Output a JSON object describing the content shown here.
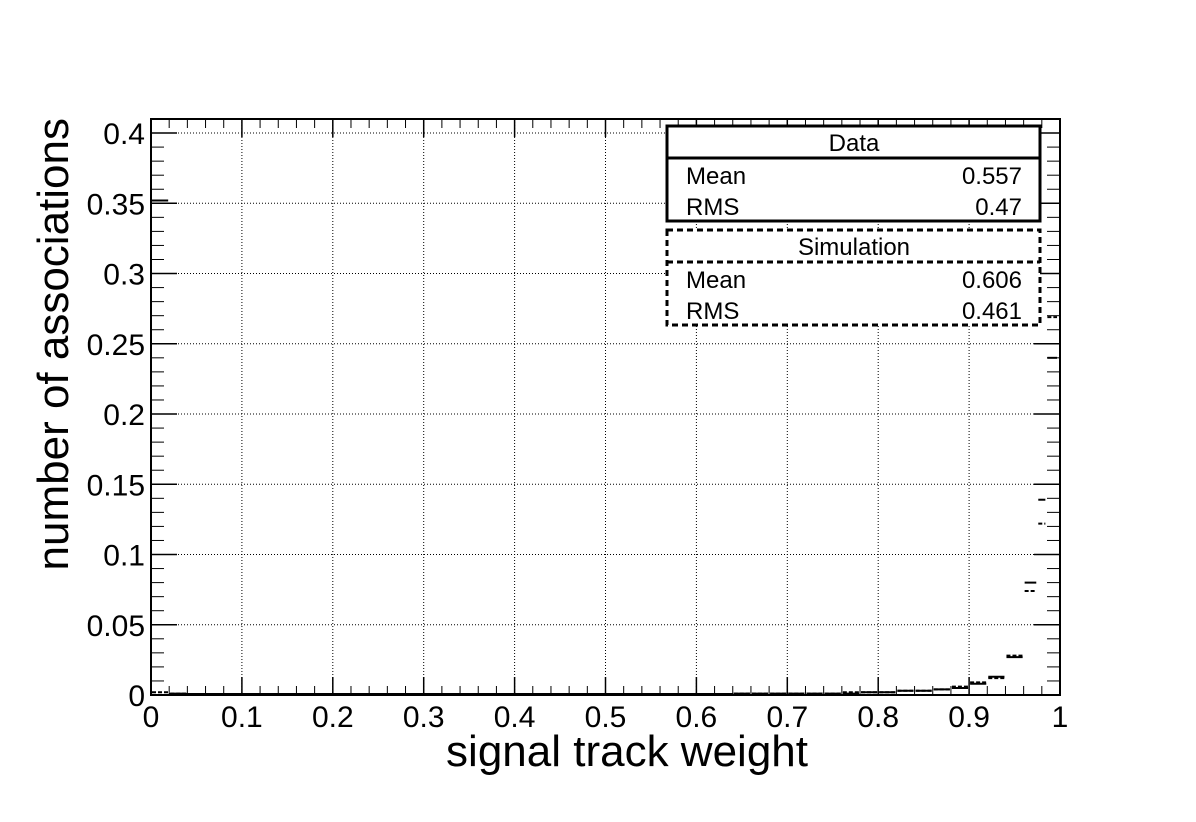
{
  "chart_data": {
    "type": "histogram",
    "xlabel": "signal track weight",
    "ylabel": "number of associations",
    "xlim": [
      0,
      1
    ],
    "ylim": [
      0,
      0.41
    ],
    "x_ticks": [
      "0",
      "0.1",
      "0.2",
      "0.3",
      "0.4",
      "0.5",
      "0.6",
      "0.7",
      "0.8",
      "0.9",
      "1"
    ],
    "y_ticks": [
      "0",
      "0.05",
      "0.1",
      "0.15",
      "0.2",
      "0.25",
      "0.3",
      "0.35",
      "0.4"
    ],
    "x_tick_values": [
      0,
      0.1,
      0.2,
      0.3,
      0.4,
      0.5,
      0.6,
      0.7,
      0.8,
      0.9,
      1.0
    ],
    "y_tick_values": [
      0,
      0.05,
      0.1,
      0.15,
      0.2,
      0.25,
      0.3,
      0.35,
      0.4
    ],
    "grid": true,
    "bin_width": 0.02,
    "series": [
      {
        "name": "Data",
        "style": "solid",
        "bins": [
          {
            "x": 0.0,
            "y": 0.352
          },
          {
            "x": 0.02,
            "y": 0.001
          },
          {
            "x": 0.64,
            "y": 0.001
          },
          {
            "x": 0.66,
            "y": 0.001
          },
          {
            "x": 0.68,
            "y": 0.001
          },
          {
            "x": 0.7,
            "y": 0.001
          },
          {
            "x": 0.72,
            "y": 0.001
          },
          {
            "x": 0.74,
            "y": 0.001
          },
          {
            "x": 0.76,
            "y": 0.001
          },
          {
            "x": 0.78,
            "y": 0.002
          },
          {
            "x": 0.8,
            "y": 0.002
          },
          {
            "x": 0.82,
            "y": 0.003
          },
          {
            "x": 0.84,
            "y": 0.003
          },
          {
            "x": 0.86,
            "y": 0.004
          },
          {
            "x": 0.88,
            "y": 0.005
          },
          {
            "x": 0.9,
            "y": 0.008
          },
          {
            "x": 0.92,
            "y": 0.013
          },
          {
            "x": 0.94,
            "y": 0.027
          },
          {
            "x": 0.96,
            "y": 0.08
          },
          {
            "x": 0.98,
            "y": 0.139
          }
        ]
      },
      {
        "name": "Simulation",
        "style": "dashed",
        "bins": [
          {
            "x": 0.0,
            "y": 0.002
          },
          {
            "x": 0.02,
            "y": 0.001
          },
          {
            "x": 0.64,
            "y": 0.001
          },
          {
            "x": 0.66,
            "y": 0.001
          },
          {
            "x": 0.68,
            "y": 0.001
          },
          {
            "x": 0.7,
            "y": 0.001
          },
          {
            "x": 0.72,
            "y": 0.001
          },
          {
            "x": 0.74,
            "y": 0.001
          },
          {
            "x": 0.76,
            "y": 0.002
          },
          {
            "x": 0.78,
            "y": 0.002
          },
          {
            "x": 0.8,
            "y": 0.002
          },
          {
            "x": 0.82,
            "y": 0.003
          },
          {
            "x": 0.84,
            "y": 0.003
          },
          {
            "x": 0.86,
            "y": 0.004
          },
          {
            "x": 0.88,
            "y": 0.006
          },
          {
            "x": 0.9,
            "y": 0.009
          },
          {
            "x": 0.92,
            "y": 0.012
          },
          {
            "x": 0.94,
            "y": 0.028
          },
          {
            "x": 0.96,
            "y": 0.074
          },
          {
            "x": 0.98,
            "y": 0.122
          }
        ]
      },
      {
        "name": "Data",
        "style": "solid",
        "bins": [
          {
            "x": 0.99,
            "y": 0.24
          }
        ]
      },
      {
        "name": "Simulation",
        "style": "dashed",
        "bins": [
          {
            "x": 0.99,
            "y": 0.269
          }
        ]
      }
    ],
    "legend": {
      "placement": "top-right",
      "boxes": [
        {
          "title": "Data",
          "style": "solid",
          "rows": [
            {
              "label": "Mean",
              "value": "0.557"
            },
            {
              "label": "RMS",
              "value": "0.47"
            }
          ]
        },
        {
          "title": "Simulation",
          "style": "dashed",
          "rows": [
            {
              "label": "Mean",
              "value": "0.606"
            },
            {
              "label": "RMS",
              "value": "0.461"
            }
          ]
        }
      ]
    }
  }
}
